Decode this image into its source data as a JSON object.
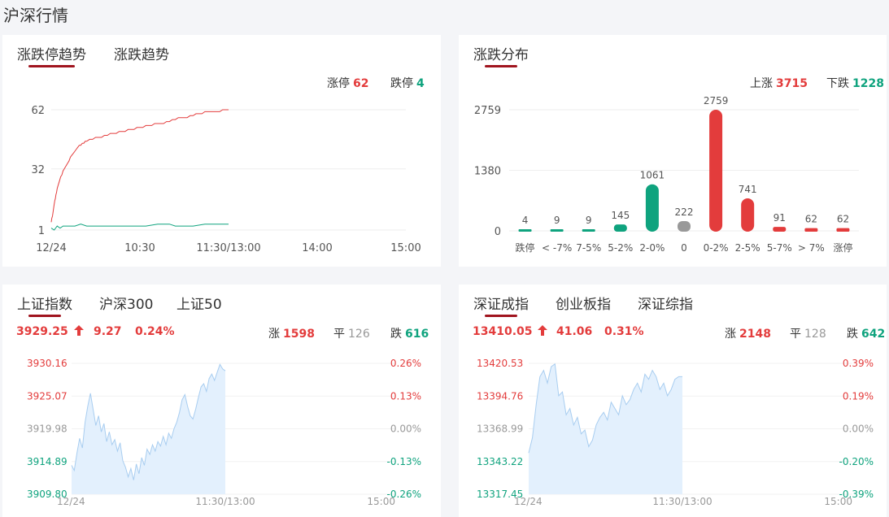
{
  "page_title": "沪深行情",
  "colors": {
    "up": "#e33c3c",
    "down": "#0fa37e",
    "flat": "#999999",
    "accent": "#a0141e",
    "area": "#e3f0fd",
    "area_line": "#a8cdf0"
  },
  "limit_panel": {
    "tabs": [
      {
        "label": "涨跌停趋势",
        "active": true
      },
      {
        "label": "涨跌趋势",
        "active": false
      }
    ],
    "stats": {
      "up_label": "涨停",
      "up_value": "62",
      "down_label": "跌停",
      "down_value": "4"
    },
    "chart_data": {
      "type": "line",
      "x_ticks": [
        "12/24",
        "10:30",
        "11:30/13:00",
        "14:00",
        "15:00"
      ],
      "y_ticks": [
        "62",
        "32",
        "1"
      ],
      "ylim": [
        1,
        62
      ],
      "series": [
        {
          "color": "#e33c3c",
          "t": [
            0,
            0.1,
            0.2,
            0.3,
            0.4,
            0.5,
            0.6,
            0.7,
            0.8,
            0.9,
            1.0,
            1.2,
            1.4,
            1.6,
            1.8,
            2.0,
            2.2,
            2.4,
            2.6,
            2.8,
            3.0,
            3.25,
            3.5,
            3.75,
            4.0,
            4.25,
            4.5,
            4.75,
            5.0,
            5.25,
            5.5,
            5.75,
            6.0,
            6.5,
            7.0,
            7.5,
            8.0,
            8.5,
            9.0,
            9.5,
            10.0,
            10.5,
            11.0,
            11.5,
            12.0,
            12.5,
            13.0,
            13.5,
            14.0,
            14.5,
            15.0,
            15.5,
            16.0,
            16.5,
            17.0,
            17.5,
            18.0,
            18.5,
            19.0,
            19.5,
            20.0,
            20.5,
            21.0,
            21.5,
            22.0,
            22.5,
            23.0,
            23.5,
            24.0,
            24.5,
            25.0,
            25.5,
            26.0,
            26.5,
            27.0,
            27.5,
            28.0,
            28.5,
            29.0,
            29.5,
            30.0
          ],
          "values": [
            5,
            7,
            8,
            10,
            12,
            14,
            16,
            17,
            19,
            20,
            22,
            24,
            26,
            28,
            29,
            31,
            32,
            33,
            34,
            35,
            36,
            38,
            39,
            40,
            41,
            42,
            43,
            44,
            44,
            45,
            45,
            46,
            46,
            47,
            47,
            48,
            48,
            48,
            49,
            49,
            50,
            50,
            50,
            51,
            51,
            51,
            52,
            52,
            52,
            53,
            53,
            53,
            54,
            54,
            54,
            55,
            55,
            55,
            55,
            56,
            56,
            57,
            57,
            58,
            58,
            58,
            58,
            59,
            59,
            60,
            60,
            60,
            61,
            61,
            61,
            61,
            61,
            61,
            62,
            62,
            62
          ]
        },
        {
          "color": "#0fa37e",
          "t": [
            0,
            0.5,
            1,
            1.5,
            2,
            3,
            4,
            5,
            6,
            7,
            8,
            9,
            10,
            12,
            14,
            16,
            18,
            19,
            20,
            21,
            22,
            24,
            26,
            28,
            30
          ],
          "values": [
            2,
            1,
            3,
            2,
            3,
            3,
            3,
            4,
            3,
            3,
            3,
            3,
            3,
            3,
            3,
            3,
            4,
            4,
            4,
            3,
            3,
            3,
            4,
            4,
            4
          ]
        }
      ]
    }
  },
  "distribution_panel": {
    "tabs": [
      {
        "label": "涨跌分布",
        "active": true
      }
    ],
    "stats": {
      "up_label": "上涨",
      "up_value": "3715",
      "down_label": "下跌",
      "down_value": "1228"
    },
    "chart_data": {
      "type": "bar",
      "y_ticks": [
        "2759",
        "1380",
        "0"
      ],
      "ylim": [
        0,
        2759
      ],
      "categories": [
        "跌停",
        "< -7%",
        "7-5%",
        "5-2%",
        "2-0%",
        "0",
        "0-2%",
        "2-5%",
        "5-7%",
        "> 7%",
        "涨停"
      ],
      "values": [
        4,
        9,
        9,
        145,
        1061,
        222,
        2759,
        741,
        91,
        62,
        62
      ],
      "value_labels": [
        "4",
        "9",
        "9",
        "145",
        "1061",
        "222",
        "2759",
        "741",
        "91",
        "62",
        "62"
      ],
      "colors": [
        "#0fa37e",
        "#0fa37e",
        "#0fa37e",
        "#0fa37e",
        "#0fa37e",
        "#999999",
        "#e33c3c",
        "#e33c3c",
        "#e33c3c",
        "#e33c3c",
        "#e33c3c"
      ]
    }
  },
  "index_panels": [
    {
      "tabs": [
        {
          "label": "上证指数",
          "active": true
        },
        {
          "label": "沪深300",
          "active": false
        },
        {
          "label": "上证50",
          "active": false
        }
      ],
      "price": "3929.25",
      "change": "9.27",
      "pct": "0.24%",
      "up_label": "涨",
      "up_count": "1598",
      "flat_label": "平",
      "flat_count": "126",
      "down_label": "跌",
      "down_count": "616",
      "chart_data": {
        "type": "area",
        "y_ticks_left": [
          "3930.16",
          "3925.07",
          "3919.98",
          "3914.89",
          "3909.80"
        ],
        "y_ticks_right": [
          "0.26%",
          "0.13%",
          "0.00%",
          "-0.13%",
          "-0.26%"
        ],
        "x_ticks": [
          "12/24",
          "11:30/13:00",
          "15:00"
        ],
        "ylim": [
          3909.8,
          3930.16
        ],
        "values": [
          3914.3,
          3913.5,
          3916.2,
          3918.5,
          3917.0,
          3921.0,
          3923.5,
          3925.5,
          3923.0,
          3920.5,
          3922.0,
          3919.5,
          3920.8,
          3918.0,
          3919.5,
          3917.5,
          3918.3,
          3916.5,
          3917.8,
          3915.0,
          3914.0,
          3912.5,
          3913.8,
          3912.0,
          3914.5,
          3913.0,
          3915.5,
          3914.3,
          3916.8,
          3916.0,
          3917.5,
          3916.5,
          3918.0,
          3917.3,
          3918.8,
          3917.5,
          3919.3,
          3918.5,
          3920.0,
          3921.0,
          3922.5,
          3924.5,
          3925.3,
          3923.5,
          3922.0,
          3921.5,
          3923.0,
          3924.8,
          3926.5,
          3927.0,
          3925.8,
          3927.8,
          3928.5,
          3927.5,
          3928.8,
          3930.0,
          3929.3,
          3929.0
        ]
      }
    },
    {
      "tabs": [
        {
          "label": "深证成指",
          "active": true
        },
        {
          "label": "创业板指",
          "active": false
        },
        {
          "label": "深证综指",
          "active": false
        }
      ],
      "price": "13410.05",
      "change": "41.06",
      "pct": "0.31%",
      "up_label": "涨",
      "up_count": "2148",
      "flat_label": "平",
      "flat_count": "128",
      "down_label": "跌",
      "down_count": "642",
      "chart_data": {
        "type": "area",
        "y_ticks_left": [
          "13420.53",
          "13394.76",
          "13368.99",
          "13343.22",
          "13317.45"
        ],
        "y_ticks_right": [
          "0.39%",
          "0.19%",
          "0.00%",
          "-0.20%",
          "-0.39%"
        ],
        "x_ticks": [
          "12/24",
          "11:30/13:00",
          "15:00"
        ],
        "ylim": [
          13317.45,
          13420.53
        ],
        "values": [
          13350,
          13362,
          13388,
          13410,
          13415,
          13405,
          13418,
          13420,
          13395,
          13398,
          13380,
          13385,
          13372,
          13378,
          13365,
          13368,
          13355,
          13360,
          13372,
          13378,
          13382,
          13376,
          13390,
          13385,
          13380,
          13395,
          13388,
          13392,
          13400,
          13405,
          13398,
          13412,
          13408,
          13415,
          13410,
          13400,
          13405,
          13395,
          13400,
          13408,
          13410,
          13410
        ]
      }
    }
  ]
}
